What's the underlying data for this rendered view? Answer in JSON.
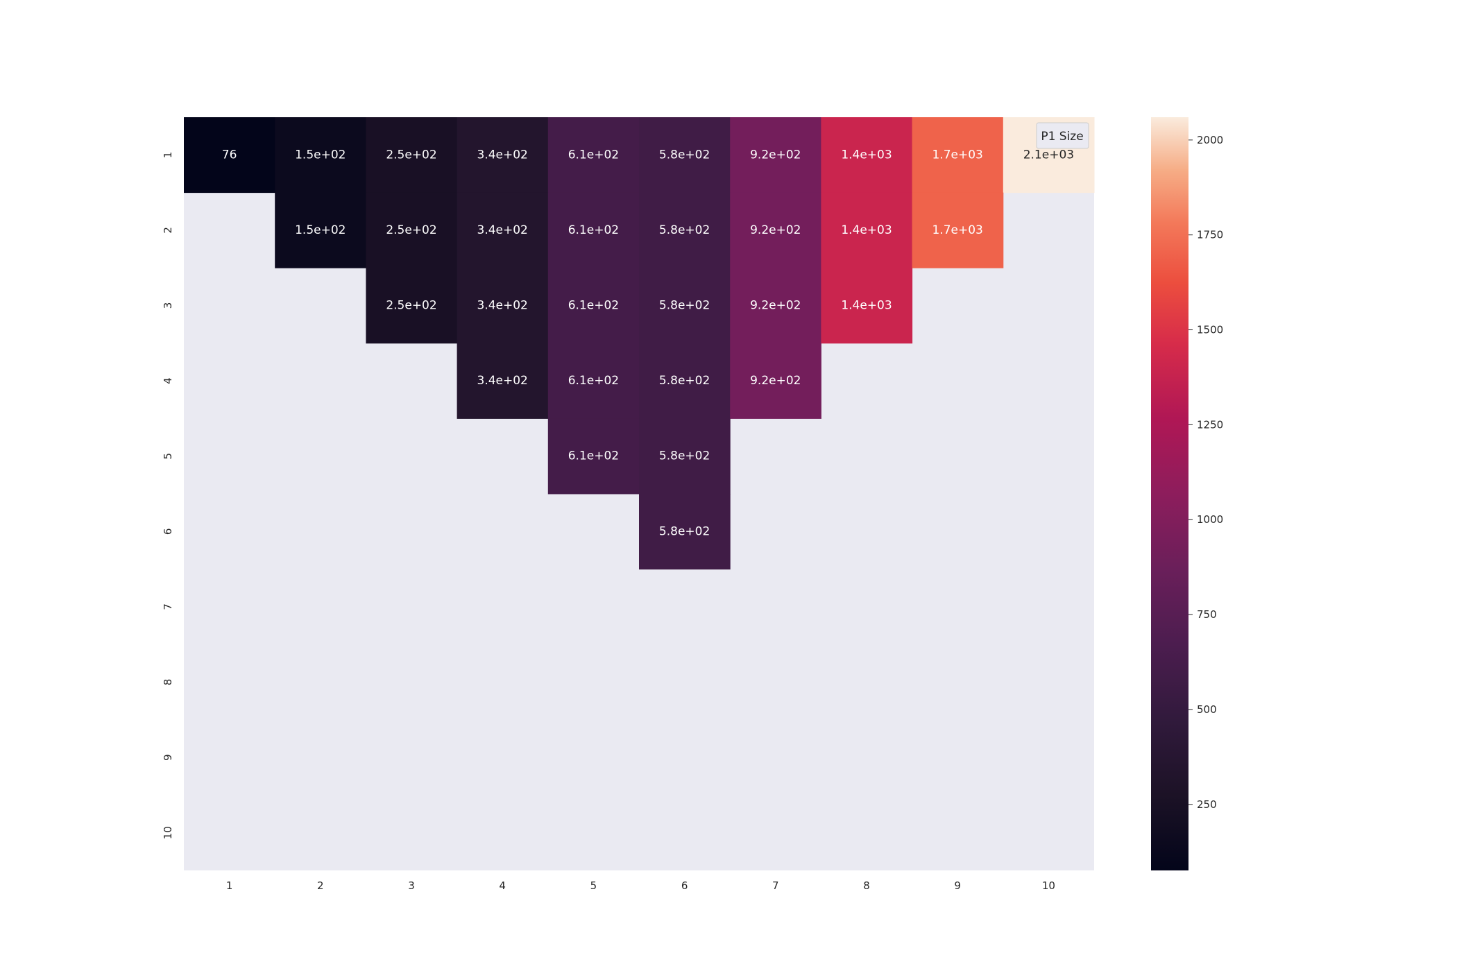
{
  "chart_data": {
    "type": "heatmap",
    "title": "",
    "xlabel": "",
    "ylabel": "",
    "x_categories": [
      "1",
      "2",
      "3",
      "4",
      "5",
      "6",
      "7",
      "8",
      "9",
      "10"
    ],
    "y_categories": [
      "1",
      "2",
      "3",
      "4",
      "5",
      "6",
      "7",
      "8",
      "9",
      "10"
    ],
    "values": [
      [
        76,
        150,
        250,
        340,
        610,
        580,
        920,
        1400,
        1700,
        2100
      ],
      [
        null,
        150,
        250,
        340,
        610,
        580,
        920,
        1400,
        1700,
        null
      ],
      [
        null,
        null,
        250,
        340,
        610,
        580,
        920,
        1400,
        null,
        null
      ],
      [
        null,
        null,
        null,
        340,
        610,
        580,
        920,
        null,
        null,
        null
      ],
      [
        null,
        null,
        null,
        null,
        610,
        580,
        null,
        null,
        null,
        null
      ],
      [
        null,
        null,
        null,
        null,
        null,
        580,
        null,
        null,
        null,
        null
      ],
      [
        null,
        null,
        null,
        null,
        null,
        null,
        null,
        null,
        null,
        null
      ],
      [
        null,
        null,
        null,
        null,
        null,
        null,
        null,
        null,
        null,
        null
      ],
      [
        null,
        null,
        null,
        null,
        null,
        null,
        null,
        null,
        null,
        null
      ],
      [
        null,
        null,
        null,
        null,
        null,
        null,
        null,
        null,
        null,
        null
      ]
    ],
    "labels": [
      [
        "76",
        "1.5e+02",
        "2.5e+02",
        "3.4e+02",
        "6.1e+02",
        "5.8e+02",
        "9.2e+02",
        "1.4e+03",
        "1.7e+03",
        "2.1e+03"
      ],
      [
        "",
        "1.5e+02",
        "2.5e+02",
        "3.4e+02",
        "6.1e+02",
        "5.8e+02",
        "9.2e+02",
        "1.4e+03",
        "1.7e+03",
        ""
      ],
      [
        "",
        "",
        "2.5e+02",
        "3.4e+02",
        "6.1e+02",
        "5.8e+02",
        "9.2e+02",
        "1.4e+03",
        "",
        ""
      ],
      [
        "",
        "",
        "",
        "3.4e+02",
        "6.1e+02",
        "5.8e+02",
        "9.2e+02",
        "",
        "",
        ""
      ],
      [
        "",
        "",
        "",
        "",
        "6.1e+02",
        "5.8e+02",
        "",
        "",
        "",
        ""
      ],
      [
        "",
        "",
        "",
        "",
        "",
        "5.8e+02",
        "",
        "",
        "",
        ""
      ],
      [
        "",
        "",
        "",
        "",
        "",
        "",
        "",
        "",
        "",
        ""
      ],
      [
        "",
        "",
        "",
        "",
        "",
        "",
        "",
        "",
        "",
        ""
      ],
      [
        "",
        "",
        "",
        "",
        "",
        "",
        "",
        "",
        "",
        ""
      ],
      [
        "",
        "",
        "",
        "",
        "",
        "",
        "",
        "",
        "",
        ""
      ]
    ],
    "legend": {
      "label": "P1 Size",
      "placement": "top-right"
    },
    "colorbar": {
      "range": [
        76,
        2060
      ],
      "ticks": [
        250,
        500,
        750,
        1000,
        1250,
        1500,
        1750,
        2000
      ],
      "colormap": "rocket"
    },
    "colors": {
      "missing_background": "#eaeaf2",
      "stops": [
        [
          0.0,
          "#03051a"
        ],
        [
          0.1,
          "#1c1226"
        ],
        [
          0.2,
          "#311a3c"
        ],
        [
          0.3,
          "#4c1d4f"
        ],
        [
          0.4,
          "#6a1f5a"
        ],
        [
          0.5,
          "#8d1d5c"
        ],
        [
          0.6,
          "#b01755"
        ],
        [
          0.7,
          "#d72c4a"
        ],
        [
          0.78,
          "#ec4e3e"
        ],
        [
          0.86,
          "#f3795a"
        ],
        [
          0.93,
          "#f6ad86"
        ],
        [
          1.0,
          "#faebdd"
        ]
      ]
    }
  }
}
